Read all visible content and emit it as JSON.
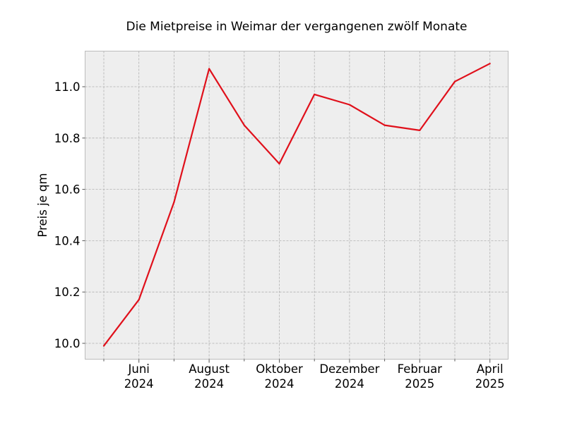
{
  "chart_data": {
    "type": "line",
    "title": "Die Mietpreise in Weimar der vergangenen zwölf Monate",
    "xlabel": "",
    "ylabel": "Preis je qm",
    "x": [
      "2024-05",
      "2024-06",
      "2024-07",
      "2024-08",
      "2024-09",
      "2024-10",
      "2024-11",
      "2024-12",
      "2025-01",
      "2025-02",
      "2025-03",
      "2025-04"
    ],
    "series": [
      {
        "values": [
          9.99,
          10.17,
          10.55,
          11.07,
          10.85,
          10.7,
          10.97,
          10.93,
          10.85,
          10.83,
          11.02,
          11.09
        ],
        "color": "#e0101b"
      }
    ],
    "ylim": [
      9.94,
      11.14
    ],
    "y_ticks": [
      10.0,
      10.2,
      10.4,
      10.6,
      10.8,
      11.0
    ],
    "y_tick_labels": [
      "10.0",
      "10.2",
      "10.4",
      "10.6",
      "10.8",
      "11.0"
    ],
    "x_tick_labels": [
      {
        "month": "Juni",
        "year": "2024"
      },
      {
        "month": "August",
        "year": "2024"
      },
      {
        "month": "Oktober",
        "year": "2024"
      },
      {
        "month": "Dezember",
        "year": "2024"
      },
      {
        "month": "Februar",
        "year": "2025"
      },
      {
        "month": "April",
        "year": "2025"
      }
    ],
    "grid": true,
    "background": "#eeeeee",
    "frame_color": "#bcbcbc"
  }
}
